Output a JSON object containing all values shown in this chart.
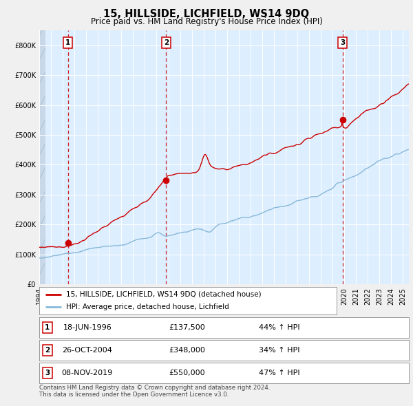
{
  "title": "15, HILLSIDE, LICHFIELD, WS14 9DQ",
  "subtitle": "Price paid vs. HM Land Registry's House Price Index (HPI)",
  "legend_line1": "15, HILLSIDE, LICHFIELD, WS14 9DQ (detached house)",
  "legend_line2": "HPI: Average price, detached house, Lichfield",
  "footnote1": "Contains HM Land Registry data © Crown copyright and database right 2024.",
  "footnote2": "This data is licensed under the Open Government Licence v3.0.",
  "transactions": [
    {
      "label": "1",
      "date": "18-JUN-1996",
      "price": 137500,
      "pct": "44% ↑ HPI"
    },
    {
      "label": "2",
      "date": "26-OCT-2004",
      "price": 348000,
      "pct": "34% ↑ HPI"
    },
    {
      "label": "3",
      "date": "08-NOV-2019",
      "price": 550000,
      "pct": "47% ↑ HPI"
    }
  ],
  "red_color": "#cc0000",
  "blue_color": "#88b8d8",
  "dashed_color": "#cc0000",
  "plot_bg": "#ddeeff",
  "grid_color": "#ffffff",
  "ylim": [
    0,
    850000
  ],
  "x_start_year": 1994.0,
  "x_end_year": 2025.5,
  "sale_years": [
    1996.46,
    2004.82,
    2019.85
  ],
  "sale_prices": [
    137500,
    348000,
    550000
  ]
}
